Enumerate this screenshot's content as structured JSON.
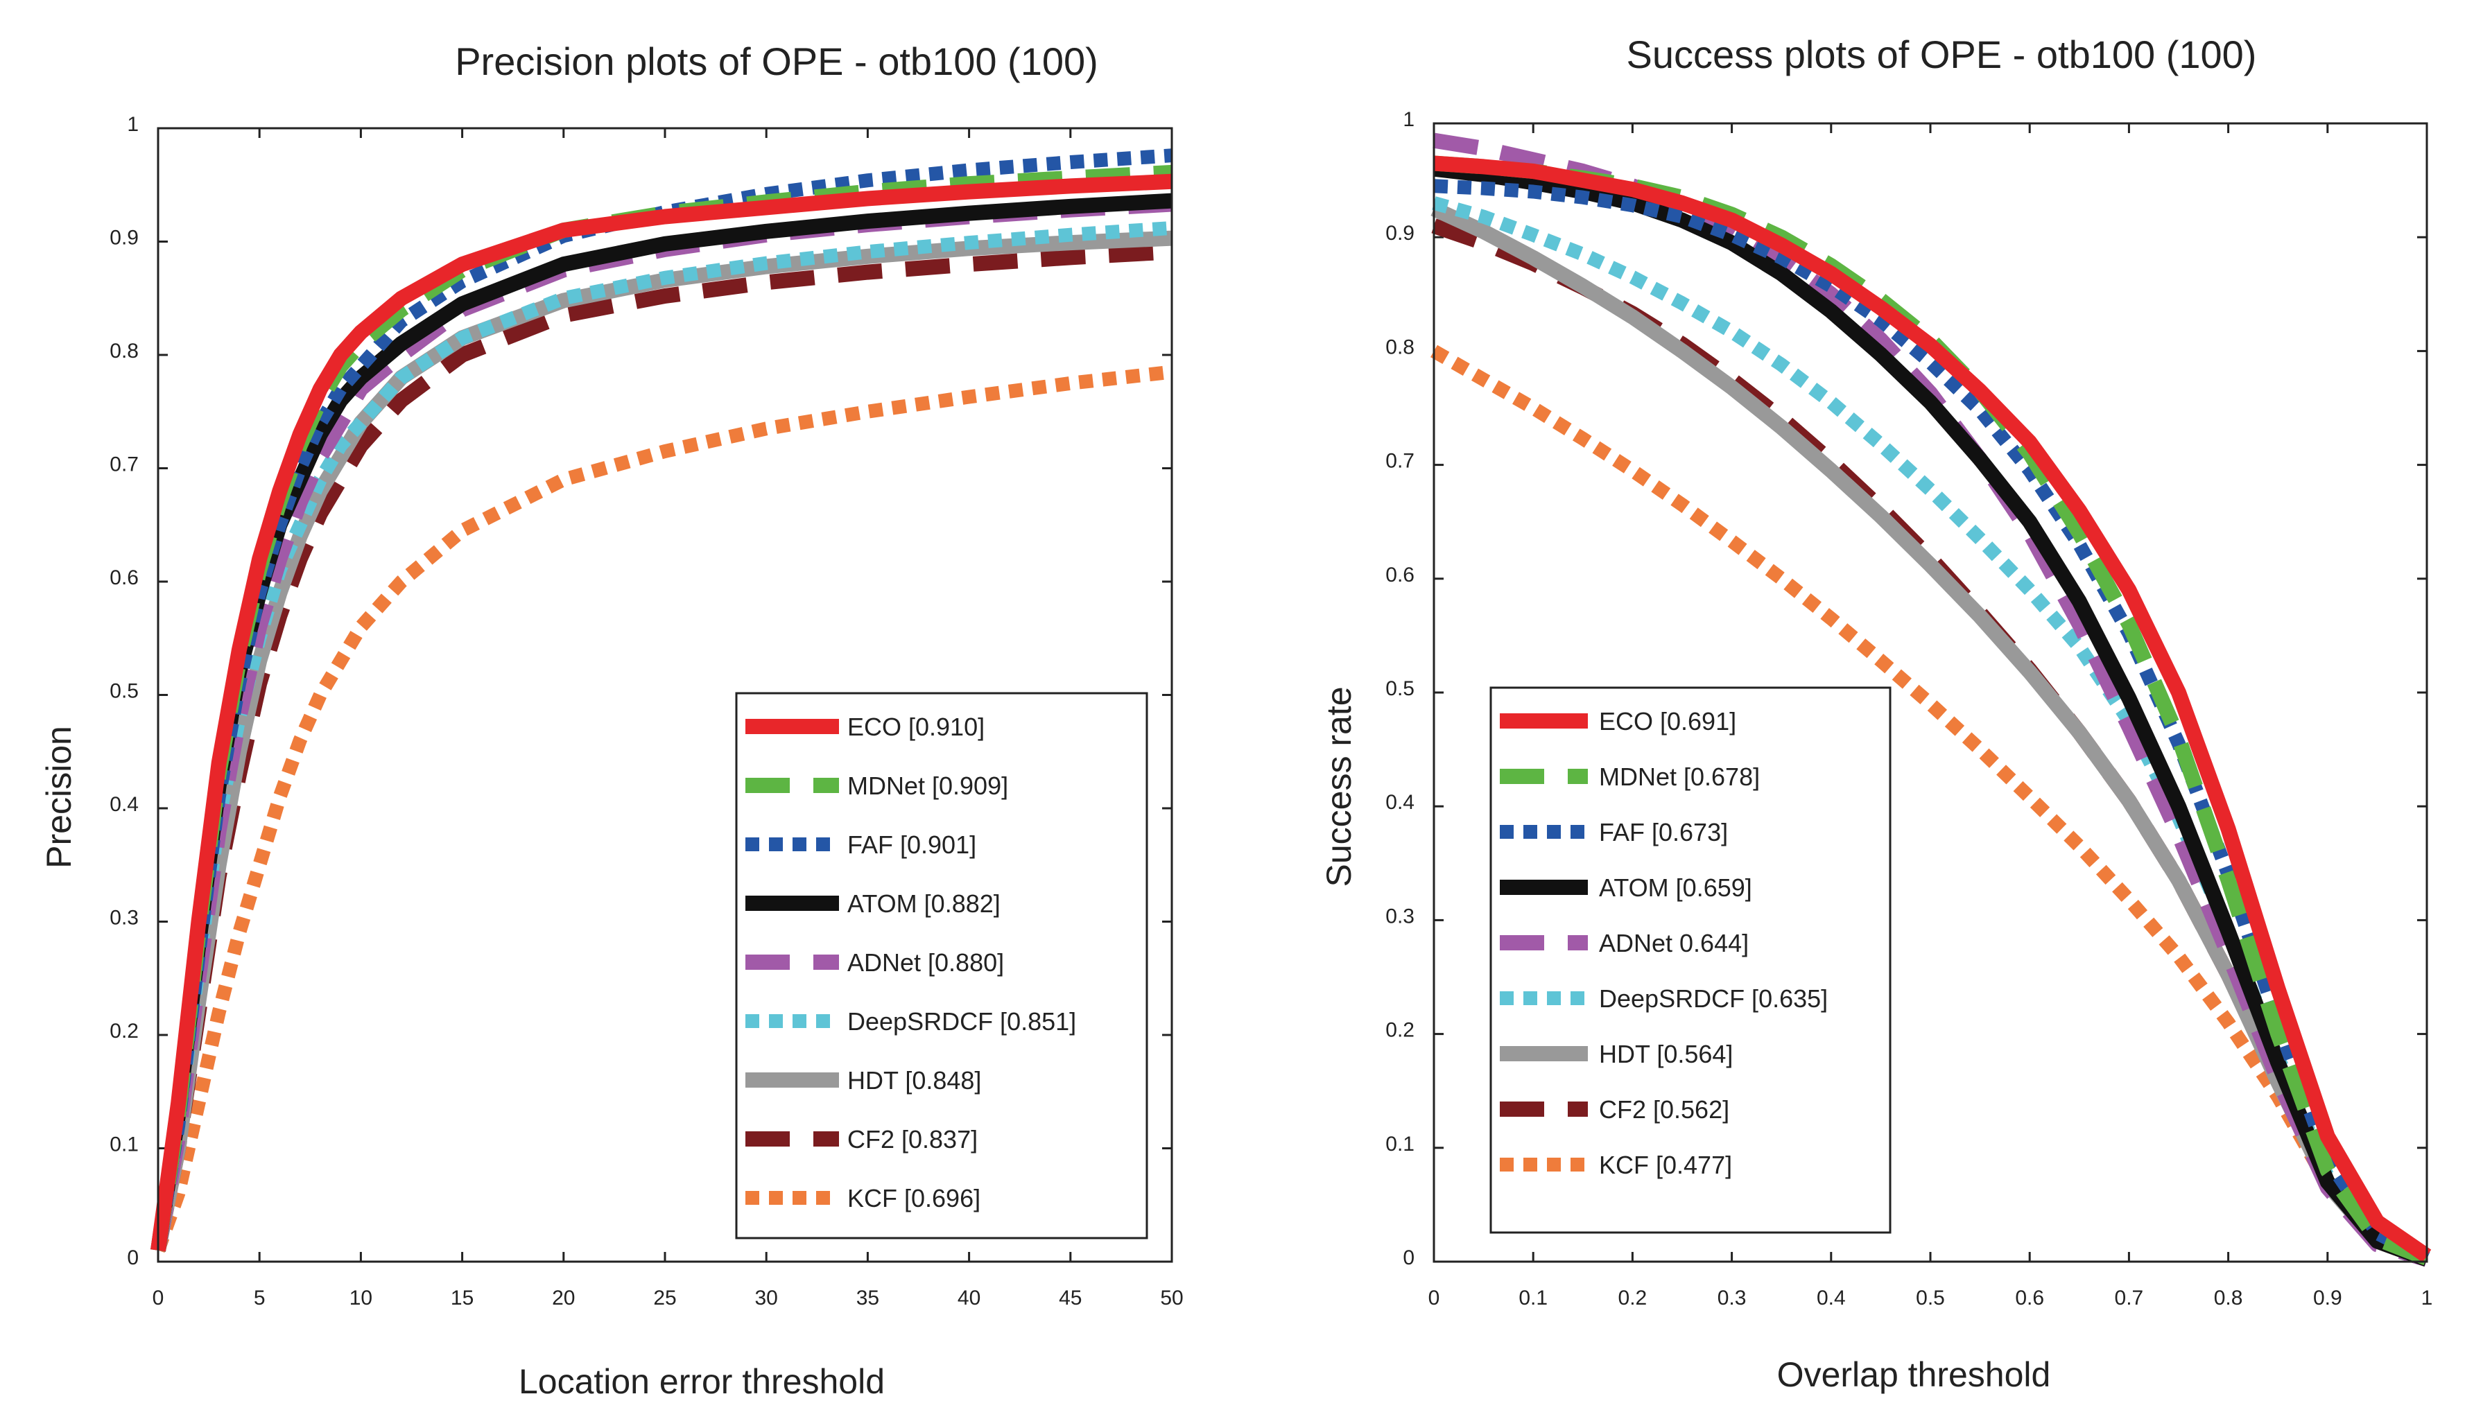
{
  "chart_data": [
    {
      "type": "line",
      "title": "Precision plots of OPE - otb100 (100)",
      "xlabel": "Location error threshold",
      "ylabel": "Precision",
      "xlim": [
        0,
        50
      ],
      "ylim": [
        0,
        1
      ],
      "x_ticks": [
        "0",
        "5",
        "10",
        "15",
        "20",
        "25",
        "30",
        "35",
        "40",
        "45",
        "50"
      ],
      "y_ticks": [
        "0",
        "0.1",
        "0.2",
        "0.3",
        "0.4",
        "0.5",
        "0.6",
        "0.7",
        "0.8",
        "0.9",
        "1"
      ],
      "legend_position": "bottom-right",
      "x": [
        0,
        1,
        2,
        3,
        4,
        5,
        6,
        7,
        8,
        9,
        10,
        12,
        15,
        20,
        25,
        30,
        35,
        40,
        45,
        50
      ],
      "series": [
        {
          "name": "ECO",
          "label_text": "ECO [0.910]",
          "style": "solid",
          "color": "#e8262a",
          "values": [
            0.01,
            0.14,
            0.3,
            0.44,
            0.54,
            0.62,
            0.68,
            0.73,
            0.77,
            0.8,
            0.82,
            0.85,
            0.88,
            0.91,
            0.922,
            0.93,
            0.938,
            0.944,
            0.949,
            0.953
          ]
        },
        {
          "name": "MDNet",
          "label_text": "MDNet [0.909]",
          "style": "dashed",
          "color": "#5db543",
          "values": [
            0.01,
            0.13,
            0.29,
            0.43,
            0.53,
            0.61,
            0.67,
            0.72,
            0.76,
            0.79,
            0.81,
            0.84,
            0.875,
            0.91,
            0.925,
            0.935,
            0.944,
            0.951,
            0.956,
            0.961
          ]
        },
        {
          "name": "FAF",
          "label_text": "FAF [0.901]",
          "style": "dotted",
          "color": "#2456a6",
          "values": [
            0.01,
            0.12,
            0.27,
            0.41,
            0.51,
            0.59,
            0.65,
            0.7,
            0.74,
            0.77,
            0.79,
            0.83,
            0.865,
            0.905,
            0.926,
            0.942,
            0.954,
            0.963,
            0.97,
            0.976
          ]
        },
        {
          "name": "ATOM",
          "label_text": "ATOM [0.882]",
          "style": "solid",
          "color": "#111111",
          "values": [
            0.01,
            0.13,
            0.28,
            0.42,
            0.52,
            0.59,
            0.65,
            0.69,
            0.73,
            0.76,
            0.78,
            0.81,
            0.845,
            0.88,
            0.898,
            0.909,
            0.918,
            0.925,
            0.931,
            0.936
          ]
        },
        {
          "name": "ADNet",
          "label_text": "ADNet [0.880]",
          "style": "dashed",
          "color": "#a15aa8",
          "values": [
            0.01,
            0.11,
            0.25,
            0.38,
            0.48,
            0.56,
            0.62,
            0.67,
            0.71,
            0.74,
            0.77,
            0.8,
            0.84,
            0.875,
            0.893,
            0.906,
            0.915,
            0.922,
            0.928,
            0.933
          ]
        },
        {
          "name": "DeepSRDCF",
          "label_text": "DeepSRDCF [0.851]",
          "style": "dotted",
          "color": "#5ec4d6",
          "values": [
            0.01,
            0.12,
            0.26,
            0.39,
            0.48,
            0.55,
            0.61,
            0.65,
            0.69,
            0.72,
            0.74,
            0.78,
            0.815,
            0.85,
            0.868,
            0.881,
            0.891,
            0.899,
            0.906,
            0.912
          ]
        },
        {
          "name": "HDT",
          "label_text": "HDT [0.848]",
          "style": "solid",
          "color": "#999999",
          "values": [
            0.01,
            0.1,
            0.23,
            0.35,
            0.45,
            0.53,
            0.59,
            0.64,
            0.68,
            0.71,
            0.74,
            0.78,
            0.815,
            0.848,
            0.866,
            0.878,
            0.887,
            0.894,
            0.899,
            0.903
          ]
        },
        {
          "name": "CF2",
          "label_text": "CF2 [0.837]",
          "style": "dashed",
          "color": "#7b1c1f",
          "values": [
            0.01,
            0.1,
            0.22,
            0.34,
            0.43,
            0.51,
            0.57,
            0.62,
            0.66,
            0.69,
            0.72,
            0.76,
            0.8,
            0.835,
            0.852,
            0.864,
            0.873,
            0.88,
            0.886,
            0.891
          ]
        },
        {
          "name": "KCF",
          "label_text": "KCF [0.696]",
          "style": "dotted",
          "color": "#ef7c3b",
          "values": [
            0.01,
            0.06,
            0.14,
            0.22,
            0.29,
            0.35,
            0.41,
            0.46,
            0.5,
            0.53,
            0.56,
            0.6,
            0.645,
            0.69,
            0.715,
            0.735,
            0.75,
            0.763,
            0.775,
            0.785
          ]
        }
      ]
    },
    {
      "type": "line",
      "title": "Success plots of OPE - otb100 (100)",
      "xlabel": "Overlap threshold",
      "ylabel": "Success rate",
      "xlim": [
        0,
        1
      ],
      "ylim": [
        0,
        1
      ],
      "x_ticks": [
        "0",
        "0.1",
        "0.2",
        "0.3",
        "0.4",
        "0.5",
        "0.6",
        "0.7",
        "0.8",
        "0.9",
        "1"
      ],
      "y_ticks": [
        "0",
        "0.1",
        "0.2",
        "0.3",
        "0.4",
        "0.5",
        "0.6",
        "0.7",
        "0.8",
        "0.9",
        "1"
      ],
      "legend_position": "bottom-left",
      "x": [
        0,
        0.05,
        0.1,
        0.15,
        0.2,
        0.25,
        0.3,
        0.35,
        0.4,
        0.45,
        0.5,
        0.55,
        0.6,
        0.65,
        0.7,
        0.75,
        0.8,
        0.85,
        0.9,
        0.95,
        1.0
      ],
      "series": [
        {
          "name": "ECO",
          "label_text": "ECO [0.691]",
          "style": "solid",
          "color": "#e8262a",
          "values": [
            0.965,
            0.962,
            0.958,
            0.95,
            0.942,
            0.93,
            0.915,
            0.893,
            0.868,
            0.838,
            0.805,
            0.765,
            0.72,
            0.66,
            0.59,
            0.5,
            0.38,
            0.24,
            0.11,
            0.035,
            0.005
          ]
        },
        {
          "name": "MDNet",
          "label_text": "MDNet [0.678]",
          "style": "dashed",
          "color": "#5db543",
          "values": [
            0.965,
            0.962,
            0.958,
            0.952,
            0.945,
            0.935,
            0.92,
            0.9,
            0.875,
            0.845,
            0.81,
            0.765,
            0.71,
            0.64,
            0.56,
            0.46,
            0.335,
            0.2,
            0.08,
            0.02,
            0.003
          ]
        },
        {
          "name": "FAF",
          "label_text": "FAF [0.673]",
          "style": "dotted",
          "color": "#2456a6",
          "values": [
            0.945,
            0.943,
            0.94,
            0.935,
            0.928,
            0.918,
            0.902,
            0.882,
            0.857,
            0.827,
            0.79,
            0.748,
            0.695,
            0.63,
            0.552,
            0.455,
            0.34,
            0.21,
            0.09,
            0.025,
            0.003
          ]
        },
        {
          "name": "ATOM",
          "label_text": "ATOM [0.659]",
          "style": "solid",
          "color": "#111111",
          "values": [
            0.96,
            0.955,
            0.948,
            0.94,
            0.93,
            0.915,
            0.895,
            0.868,
            0.835,
            0.797,
            0.755,
            0.705,
            0.65,
            0.58,
            0.495,
            0.4,
            0.29,
            0.175,
            0.07,
            0.018,
            0.002
          ]
        },
        {
          "name": "ADNet",
          "label_text": "ADNet  0.644]",
          "style": "dashed",
          "color": "#a15aa8",
          "values": [
            0.985,
            0.978,
            0.968,
            0.958,
            0.945,
            0.928,
            0.908,
            0.882,
            0.85,
            0.81,
            0.763,
            0.705,
            0.64,
            0.56,
            0.47,
            0.375,
            0.27,
            0.16,
            0.065,
            0.015,
            0.002
          ]
        },
        {
          "name": "DeepSRDCF",
          "label_text": "DeepSRDCF [0.635]",
          "style": "dotted",
          "color": "#5ec4d6",
          "values": [
            0.93,
            0.918,
            0.902,
            0.885,
            0.865,
            0.842,
            0.817,
            0.788,
            0.755,
            0.718,
            0.678,
            0.635,
            0.59,
            0.54,
            0.475,
            0.39,
            0.29,
            0.18,
            0.075,
            0.02,
            0.002
          ]
        },
        {
          "name": "HDT",
          "label_text": "HDT [0.564]",
          "style": "solid",
          "color": "#999999",
          "values": [
            0.925,
            0.905,
            0.882,
            0.857,
            0.83,
            0.8,
            0.768,
            0.733,
            0.695,
            0.655,
            0.612,
            0.567,
            0.518,
            0.465,
            0.405,
            0.335,
            0.252,
            0.158,
            0.068,
            0.018,
            0.002
          ]
        },
        {
          "name": "CF2",
          "label_text": "CF2 [0.562]",
          "style": "dashed",
          "color": "#7b1c1f",
          "values": [
            0.91,
            0.895,
            0.877,
            0.856,
            0.833,
            0.806,
            0.775,
            0.741,
            0.703,
            0.662,
            0.618,
            0.57,
            0.52,
            0.465,
            0.405,
            0.335,
            0.252,
            0.16,
            0.07,
            0.018,
            0.002
          ]
        },
        {
          "name": "KCF",
          "label_text": "KCF [0.477]",
          "style": "dotted",
          "color": "#ef7c3b",
          "values": [
            0.8,
            0.775,
            0.75,
            0.723,
            0.695,
            0.665,
            0.633,
            0.6,
            0.565,
            0.528,
            0.49,
            0.45,
            0.408,
            0.365,
            0.318,
            0.268,
            0.21,
            0.145,
            0.068,
            0.02,
            0.002
          ]
        }
      ]
    }
  ]
}
